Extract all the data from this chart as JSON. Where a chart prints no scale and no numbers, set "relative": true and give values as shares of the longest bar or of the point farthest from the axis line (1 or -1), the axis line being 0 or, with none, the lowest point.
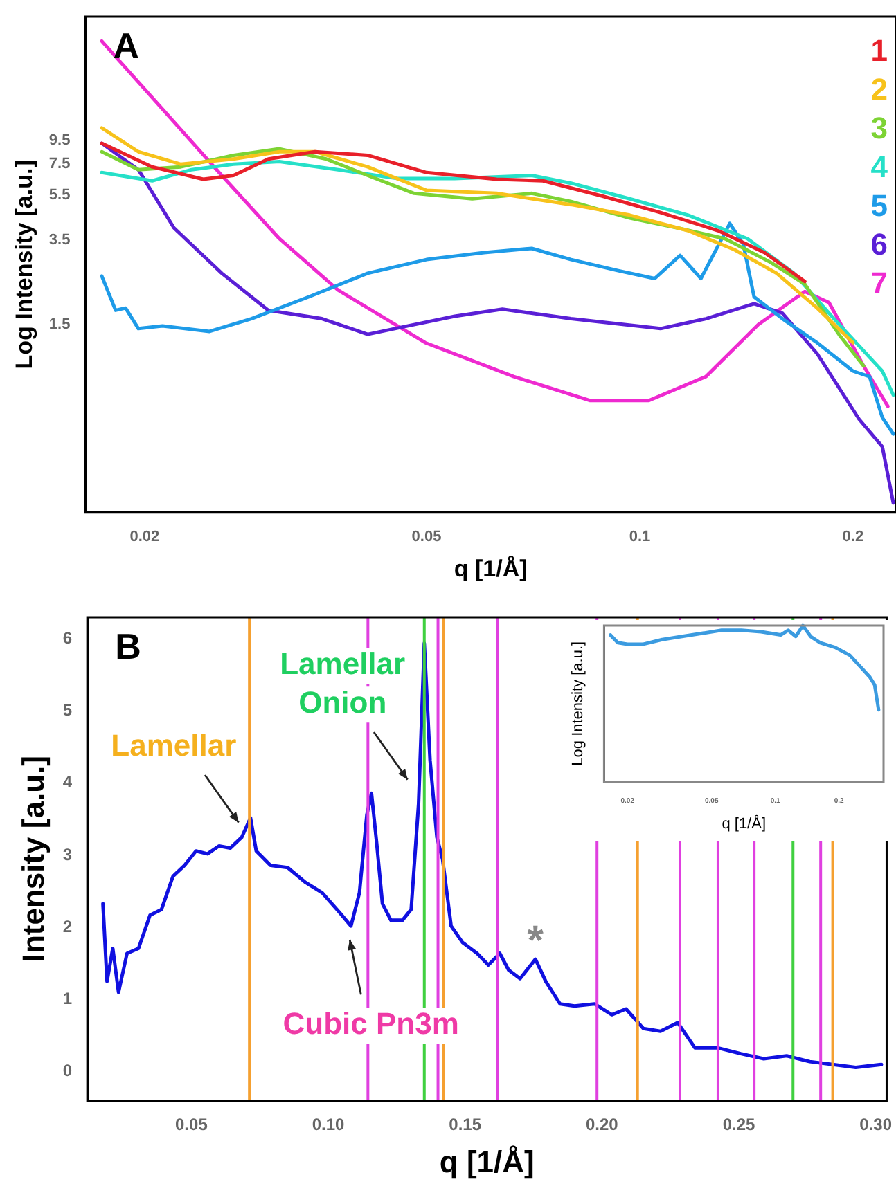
{
  "chart_data": [
    {
      "type": "line",
      "log": "xy",
      "xlabel": "q [1/Å]",
      "ylabel": "Log Intensity [a.u.]",
      "xlim": [
        0.0165,
        0.23
      ],
      "xticks": [
        0.02,
        0.05,
        0.1,
        0.2
      ],
      "ylim": [
        0.227,
        33
      ],
      "yticks": [
        1.5,
        3.5,
        5.5,
        7.5,
        9.5
      ],
      "legend": "top right",
      "annotations": [
        "A"
      ],
      "series": [
        {
          "name": "1",
          "color": "#e8202a",
          "x": [
            0.0174,
            0.0205,
            0.0242,
            0.0267,
            0.0299,
            0.0348,
            0.0413,
            0.05,
            0.0628,
            0.073,
            0.0885,
            0.107,
            0.129,
            0.15,
            0.171
          ],
          "values": [
            9.25,
            7.3,
            6.45,
            6.7,
            7.9,
            8.5,
            8.2,
            6.9,
            6.45,
            6.35,
            5.45,
            4.62,
            3.85,
            3.09,
            2.31
          ]
        },
        {
          "name": "2",
          "color": "#f7c21b",
          "x": [
            0.0174,
            0.0196,
            0.0225,
            0.0267,
            0.031,
            0.0348,
            0.0413,
            0.05,
            0.0628,
            0.08,
            0.0968,
            0.117,
            0.136,
            0.156,
            0.178,
            0.2
          ],
          "values": [
            10.8,
            8.5,
            7.5,
            7.9,
            8.5,
            8.5,
            7.3,
            5.77,
            5.6,
            5.0,
            4.5,
            3.85,
            3.18,
            2.51,
            1.77,
            1.25
          ]
        },
        {
          "name": "3",
          "color": "#7dd334",
          "x": [
            0.0174,
            0.0196,
            0.0225,
            0.0267,
            0.031,
            0.0361,
            0.0413,
            0.048,
            0.058,
            0.0704,
            0.08,
            0.0968,
            0.113,
            0.132,
            0.153,
            0.171,
            0.192,
            0.207
          ],
          "values": [
            8.5,
            7.1,
            7.3,
            8.2,
            8.75,
            7.9,
            6.7,
            5.6,
            5.3,
            5.6,
            5.16,
            4.37,
            3.96,
            3.55,
            2.8,
            2.25,
            1.33,
            0.99
          ]
        },
        {
          "name": "4",
          "color": "#26e0c8",
          "x": [
            0.0174,
            0.0205,
            0.0233,
            0.0267,
            0.031,
            0.0375,
            0.0454,
            0.0548,
            0.0704,
            0.08,
            0.0968,
            0.117,
            0.142,
            0.165,
            0.188,
            0.22,
            0.228
          ],
          "values": [
            6.9,
            6.35,
            7.1,
            7.5,
            7.7,
            7.1,
            6.5,
            6.5,
            6.7,
            6.2,
            5.3,
            4.5,
            3.55,
            2.51,
            1.59,
            0.94,
            0.74
          ]
        },
        {
          "name": "5",
          "color": "#1e9be8",
          "x": [
            0.0174,
            0.0182,
            0.0188,
            0.0196,
            0.0212,
            0.0247,
            0.0283,
            0.0341,
            0.0413,
            0.05,
            0.0603,
            0.0704,
            0.08,
            0.093,
            0.105,
            0.114,
            0.122,
            0.134,
            0.14,
            0.145,
            0.159,
            0.178,
            0.2,
            0.211,
            0.22,
            0.228
          ],
          "values": [
            2.44,
            1.73,
            1.77,
            1.44,
            1.48,
            1.4,
            1.59,
            1.98,
            2.51,
            2.88,
            3.09,
            3.22,
            2.88,
            2.58,
            2.38,
            3.0,
            2.38,
            4.14,
            3.36,
            1.98,
            1.59,
            1.25,
            0.94,
            0.89,
            0.59,
            0.5
          ]
        },
        {
          "name": "6",
          "color": "#5a1fd6",
          "x": [
            0.0174,
            0.0196,
            0.022,
            0.0257,
            0.0299,
            0.0356,
            0.0413,
            0.0471,
            0.0548,
            0.064,
            0.08,
            0.107,
            0.124,
            0.145,
            0.159,
            0.178,
            0.204,
            0.22,
            0.228
          ],
          "values": [
            9.25,
            7.1,
            3.96,
            2.51,
            1.73,
            1.59,
            1.36,
            1.48,
            1.63,
            1.75,
            1.59,
            1.44,
            1.59,
            1.85,
            1.68,
            1.12,
            0.58,
            0.44,
            0.25
          ]
        },
        {
          "name": "7",
          "color": "#ee2ad0",
          "x": [
            0.0174,
            0.0257,
            0.031,
            0.0375,
            0.0498,
            0.0664,
            0.085,
            0.103,
            0.124,
            0.147,
            0.171,
            0.185,
            0.207,
            0.224
          ],
          "values": [
            25.8,
            6.7,
            3.55,
            2.12,
            1.25,
            0.89,
            0.7,
            0.7,
            0.89,
            1.5,
            2.09,
            1.87,
            0.99,
            0.66
          ]
        }
      ]
    },
    {
      "type": "line",
      "xlabel": "q [1/Å]",
      "ylabel": "Intensity [a.u.]",
      "xlim": [
        0.012,
        0.304
      ],
      "xticks": [
        0.05,
        {
          "value": 0.1,
          "label": "0.10"
        },
        0.15,
        {
          "value": 0.2,
          "label": "0.20"
        },
        0.25,
        {
          "value": 0.3,
          "label": "0.30"
        }
      ],
      "ylim": [
        -0.4,
        6.3
      ],
      "yticks": [
        0,
        1,
        2,
        3,
        4,
        5,
        6
      ],
      "annotations": [
        "B",
        {
          "text": "Lamellar",
          "x": 0.0663,
          "y": 3.5
        },
        {
          "text": "Lamellar Onion",
          "x": 0.128,
          "y": 4.09
        },
        {
          "text": "Cubic Pn3m",
          "x": 0.108,
          "y": 1.79
        },
        {
          "text": "*",
          "x": 0.1757,
          "y": 1.56
        }
      ],
      "ref_lines": [
        {
          "axis": "x",
          "value": 0.0712,
          "color": "#f5a030"
        },
        {
          "axis": "x",
          "value": 0.1422,
          "color": "#f5a030"
        },
        {
          "axis": "x",
          "value": 0.213,
          "color": "#f5a030"
        },
        {
          "axis": "x",
          "value": 0.2843,
          "color": "#f5a030"
        },
        {
          "axis": "x",
          "value": 0.1145,
          "color": "#e040e0"
        },
        {
          "axis": "x",
          "value": 0.1401,
          "color": "#e040e0"
        },
        {
          "axis": "x",
          "value": 0.1619,
          "color": "#e040e0"
        },
        {
          "axis": "x",
          "value": 0.1982,
          "color": "#e040e0"
        },
        {
          "axis": "x",
          "value": 0.2285,
          "color": "#e040e0"
        },
        {
          "axis": "x",
          "value": 0.2424,
          "color": "#e040e0"
        },
        {
          "axis": "x",
          "value": 0.2556,
          "color": "#e040e0"
        },
        {
          "axis": "x",
          "value": 0.2799,
          "color": "#e040e0"
        },
        {
          "axis": "x",
          "value": 0.1351,
          "color": "#40d040"
        },
        {
          "axis": "x",
          "value": 0.2698,
          "color": "#40d040"
        }
      ],
      "series": [
        {
          "color": "#1010e0",
          "x": [
            0.0177,
            0.0192,
            0.0213,
            0.0234,
            0.0265,
            0.0307,
            0.0349,
            0.0391,
            0.0433,
            0.0475,
            0.0517,
            0.0559,
            0.0601,
            0.0642,
            0.0684,
            0.0716,
            0.0737,
            0.0789,
            0.0852,
            0.0915,
            0.0978,
            0.1041,
            0.1083,
            0.1114,
            0.1141,
            0.1158,
            0.1177,
            0.1198,
            0.1229,
            0.1271,
            0.1303,
            0.133,
            0.1351,
            0.1372,
            0.1397,
            0.1418,
            0.1449,
            0.1491,
            0.1544,
            0.1585,
            0.1627,
            0.1659,
            0.1701,
            0.1757,
            0.1795,
            0.1847,
            0.19,
            0.1973,
            0.2036,
            0.2088,
            0.2151,
            0.2214,
            0.2277,
            0.234,
            0.2424,
            0.2507,
            0.2591,
            0.2675,
            0.2759,
            0.2843,
            0.2927,
            0.3021
          ],
          "values": [
            2.33,
            1.25,
            1.71,
            1.1,
            1.64,
            1.71,
            2.17,
            2.25,
            2.71,
            2.86,
            3.06,
            3.02,
            3.13,
            3.1,
            3.25,
            3.52,
            3.06,
            2.86,
            2.83,
            2.63,
            2.48,
            2.21,
            2.02,
            2.48,
            3.56,
            3.86,
            3.17,
            2.33,
            2.1,
            2.1,
            2.25,
            3.71,
            5.94,
            4.32,
            3.25,
            2.94,
            2.02,
            1.79,
            1.64,
            1.48,
            1.64,
            1.41,
            1.29,
            1.56,
            1.25,
            0.94,
            0.91,
            0.94,
            0.79,
            0.87,
            0.6,
            0.56,
            0.68,
            0.33,
            0.33,
            0.25,
            0.18,
            0.22,
            0.14,
            0.1,
            0.06,
            0.1
          ]
        }
      ]
    },
    {
      "type": "line",
      "relative": true,
      "log": "x",
      "tick_labels": "x",
      "xlabel": "q [1/Å]",
      "ylabel": "Log Intensity [a.u.]",
      "xlim": [
        0.0155,
        0.325
      ],
      "xticks": [
        0.02,
        0.05,
        0.1,
        0.2
      ],
      "series": [
        {
          "color": "#3b9be0",
          "x": [
            0.0166,
            0.018,
            0.02,
            0.0236,
            0.0292,
            0.0362,
            0.045,
            0.0557,
            0.0691,
            0.0857,
            0.106,
            0.115,
            0.125,
            0.135,
            0.147,
            0.163,
            0.192,
            0.225,
            0.251,
            0.28,
            0.295,
            0.308
          ],
          "values": [
            0.94,
            0.89,
            0.88,
            0.88,
            0.91,
            0.93,
            0.95,
            0.97,
            0.97,
            0.96,
            0.94,
            0.97,
            0.93,
            1.0,
            0.93,
            0.89,
            0.86,
            0.81,
            0.74,
            0.67,
            0.62,
            0.46
          ]
        }
      ]
    }
  ]
}
